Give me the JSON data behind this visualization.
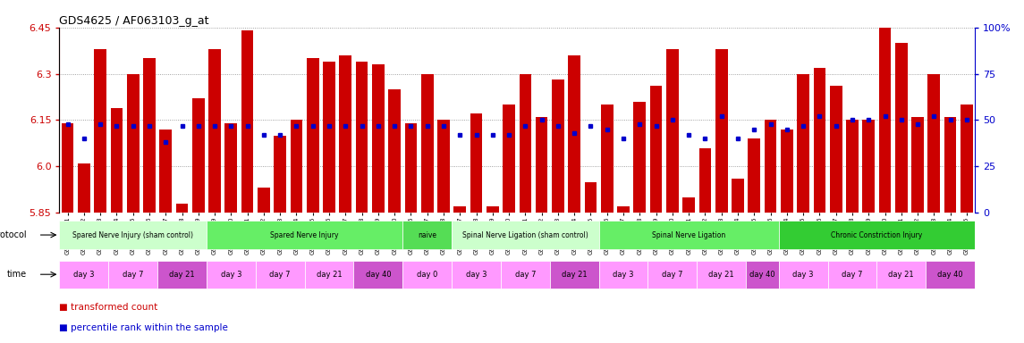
{
  "title": "GDS4625 / AF063103_g_at",
  "samples": [
    "GSM761261",
    "GSM761262",
    "GSM761263",
    "GSM761264",
    "GSM761265",
    "GSM761266",
    "GSM761267",
    "GSM761268",
    "GSM761269",
    "GSM761249",
    "GSM761250",
    "GSM761251",
    "GSM761252",
    "GSM761253",
    "GSM761254",
    "GSM761255",
    "GSM761256",
    "GSM761257",
    "GSM761258",
    "GSM761259",
    "GSM761260",
    "GSM761246",
    "GSM761247",
    "GSM761248",
    "GSM761237",
    "GSM761238",
    "GSM761239",
    "GSM761240",
    "GSM761241",
    "GSM761242",
    "GSM761243",
    "GSM761244",
    "GSM761245",
    "GSM761226",
    "GSM761227",
    "GSM761228",
    "GSM761229",
    "GSM761230",
    "GSM761231",
    "GSM761232",
    "GSM761233",
    "GSM761234",
    "GSM761235",
    "GSM761236",
    "GSM761214",
    "GSM761215",
    "GSM761216",
    "GSM761217",
    "GSM761218",
    "GSM761219",
    "GSM761220",
    "GSM761221",
    "GSM761222",
    "GSM761223",
    "GSM761224",
    "GSM761225"
  ],
  "bar_values": [
    6.14,
    6.01,
    6.38,
    6.19,
    6.3,
    6.35,
    6.12,
    5.88,
    6.22,
    6.38,
    6.14,
    6.44,
    5.93,
    6.1,
    6.15,
    6.35,
    6.34,
    6.36,
    6.34,
    6.33,
    6.25,
    6.14,
    6.3,
    6.15,
    5.87,
    6.17,
    5.87,
    6.2,
    6.3,
    6.16,
    6.28,
    6.36,
    5.95,
    6.2,
    5.87,
    6.21,
    6.26,
    6.38,
    5.9,
    6.06,
    6.38,
    5.96,
    6.09,
    6.15,
    6.12,
    6.3,
    6.32,
    6.26,
    6.15,
    6.15,
    6.45,
    6.4,
    6.16,
    6.3,
    6.16,
    6.2
  ],
  "percentile_values": [
    48,
    40,
    48,
    47,
    47,
    47,
    38,
    47,
    47,
    47,
    47,
    47,
    42,
    42,
    47,
    47,
    47,
    47,
    47,
    47,
    47,
    47,
    47,
    47,
    42,
    42,
    42,
    42,
    47,
    50,
    47,
    43,
    47,
    45,
    40,
    48,
    47,
    50,
    42,
    40,
    52,
    40,
    45,
    48,
    45,
    47,
    52,
    47,
    50,
    50,
    52,
    50,
    48,
    52,
    50,
    50
  ],
  "ylim": [
    5.85,
    6.45
  ],
  "yticks": [
    5.85,
    6.0,
    6.15,
    6.3,
    6.45
  ],
  "y2lim": [
    0,
    100
  ],
  "y2ticks": [
    0,
    25,
    50,
    75,
    100
  ],
  "protocol_groups": [
    {
      "label": "Spared Nerve Injury (sham control)",
      "start": 0,
      "end": 9,
      "color": "#ccffcc"
    },
    {
      "label": "Spared Nerve Injury",
      "start": 9,
      "end": 21,
      "color": "#66ee66"
    },
    {
      "label": "naive",
      "start": 21,
      "end": 24,
      "color": "#55dd55"
    },
    {
      "label": "Spinal Nerve Ligation (sham control)",
      "start": 24,
      "end": 33,
      "color": "#ccffcc"
    },
    {
      "label": "Spinal Nerve Ligation",
      "start": 33,
      "end": 44,
      "color": "#66ee66"
    },
    {
      "label": "Chronic Constriction Injury",
      "start": 44,
      "end": 56,
      "color": "#33cc33"
    }
  ],
  "time_groups": [
    {
      "label": "day 3",
      "start": 0,
      "end": 3,
      "color": "#ff99ff"
    },
    {
      "label": "day 7",
      "start": 3,
      "end": 6,
      "color": "#ff99ff"
    },
    {
      "label": "day 21",
      "start": 6,
      "end": 9,
      "color": "#cc55cc"
    },
    {
      "label": "day 3",
      "start": 9,
      "end": 12,
      "color": "#ff99ff"
    },
    {
      "label": "day 7",
      "start": 12,
      "end": 15,
      "color": "#ff99ff"
    },
    {
      "label": "day 21",
      "start": 15,
      "end": 18,
      "color": "#ff99ff"
    },
    {
      "label": "day 40",
      "start": 18,
      "end": 21,
      "color": "#cc55cc"
    },
    {
      "label": "day 0",
      "start": 21,
      "end": 24,
      "color": "#ff99ff"
    },
    {
      "label": "day 3",
      "start": 24,
      "end": 27,
      "color": "#ff99ff"
    },
    {
      "label": "day 7",
      "start": 27,
      "end": 30,
      "color": "#ff99ff"
    },
    {
      "label": "day 21",
      "start": 30,
      "end": 33,
      "color": "#cc55cc"
    },
    {
      "label": "day 3",
      "start": 33,
      "end": 36,
      "color": "#ff99ff"
    },
    {
      "label": "day 7",
      "start": 36,
      "end": 39,
      "color": "#ff99ff"
    },
    {
      "label": "day 21",
      "start": 39,
      "end": 42,
      "color": "#ff99ff"
    },
    {
      "label": "day 40",
      "start": 42,
      "end": 44,
      "color": "#cc55cc"
    },
    {
      "label": "day 3",
      "start": 44,
      "end": 47,
      "color": "#ff99ff"
    },
    {
      "label": "day 7",
      "start": 47,
      "end": 50,
      "color": "#ff99ff"
    },
    {
      "label": "day 21",
      "start": 50,
      "end": 53,
      "color": "#ff99ff"
    },
    {
      "label": "day 40",
      "start": 53,
      "end": 56,
      "color": "#cc55cc"
    }
  ],
  "bar_color": "#cc0000",
  "dot_color": "#0000cc",
  "grid_color": "#888888",
  "left_axis_color": "#cc0000",
  "right_axis_color": "#0000cc",
  "bg_color": "#ffffff",
  "label_protocol": "protocol",
  "label_time": "time",
  "legend_bar": "transformed count",
  "legend_dot": "percentile rank within the sample"
}
